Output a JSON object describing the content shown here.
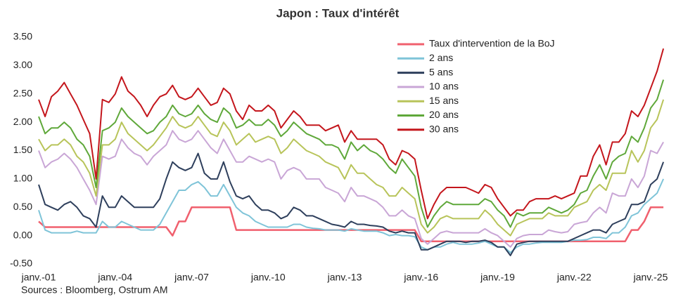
{
  "chart_data": {
    "type": "line",
    "title": "Japon : Taux d'intérêt",
    "source": "Sources : Bloomberg, Ostrum AM",
    "grid": false,
    "legend": "top-right",
    "ylim": [
      -0.5,
      3.5
    ],
    "yticks": [
      {
        "value": -0.5,
        "label": "-0.50"
      },
      {
        "value": 0,
        "label": "0.00"
      },
      {
        "value": 0.5,
        "label": "0.50"
      },
      {
        "value": 1,
        "label": "1.00"
      },
      {
        "value": 1.5,
        "label": "1.50"
      },
      {
        "value": 2,
        "label": "2.00"
      },
      {
        "value": 2.5,
        "label": "2.50"
      },
      {
        "value": 3,
        "label": "3.00"
      },
      {
        "value": 3.5,
        "label": "3.50"
      }
    ],
    "categories": [
      "janv.-01",
      null,
      null,
      null,
      null,
      null,
      null,
      null,
      null,
      null,
      null,
      null,
      "janv.-04",
      null,
      null,
      null,
      null,
      null,
      null,
      null,
      null,
      null,
      null,
      null,
      "janv.-07",
      null,
      null,
      null,
      null,
      null,
      null,
      null,
      null,
      null,
      null,
      null,
      "janv.-10",
      null,
      null,
      null,
      null,
      null,
      null,
      null,
      null,
      null,
      null,
      null,
      "janv.-13",
      null,
      null,
      null,
      null,
      null,
      null,
      null,
      null,
      null,
      null,
      null,
      "janv.-16",
      null,
      null,
      null,
      null,
      null,
      null,
      null,
      null,
      null,
      null,
      null,
      "janv.-19",
      null,
      null,
      null,
      null,
      null,
      null,
      null,
      null,
      null,
      null,
      null,
      "janv.-22",
      null,
      null,
      null,
      null,
      null,
      null,
      null,
      null,
      null,
      null,
      null,
      "janv.-25",
      null,
      null
    ],
    "series": [
      {
        "name": "Taux d'intervention de la BoJ",
        "color": "#f0606e",
        "values": [
          0.25,
          0.15,
          0.15,
          0.15,
          0.15,
          0.15,
          0.15,
          0.15,
          0.15,
          0.15,
          0.15,
          0.15,
          0.15,
          0.15,
          0.15,
          0.15,
          0.15,
          0.15,
          0.15,
          0.15,
          0.15,
          0,
          0.25,
          0.25,
          0.5,
          0.5,
          0.5,
          0.5,
          0.5,
          0.5,
          0.5,
          0.1,
          0.1,
          0.1,
          0.1,
          0.1,
          0.1,
          0.1,
          0.1,
          0.1,
          0.1,
          0.1,
          0.1,
          0.1,
          0.1,
          0.1,
          0.1,
          0.1,
          0.1,
          0.1,
          0.1,
          0.1,
          0.1,
          0.1,
          0.1,
          0.1,
          0.1,
          0.1,
          0.1,
          0.1,
          -0.1,
          -0.1,
          -0.1,
          -0.1,
          -0.1,
          -0.1,
          -0.1,
          -0.1,
          -0.1,
          -0.1,
          -0.1,
          -0.1,
          -0.1,
          -0.1,
          -0.1,
          -0.1,
          -0.1,
          -0.1,
          -0.1,
          -0.1,
          -0.1,
          -0.1,
          -0.1,
          -0.1,
          -0.1,
          -0.1,
          -0.1,
          -0.1,
          -0.1,
          -0.1,
          -0.1,
          -0.1,
          -0.1,
          0.1,
          0.1,
          0.25,
          0.5,
          0.5,
          0.5
        ]
      },
      {
        "name": "2 ans",
        "color": "#7fc4d8",
        "values": [
          0.45,
          0.1,
          0.05,
          0.05,
          0.05,
          0.05,
          0.08,
          0.05,
          0.05,
          0.05,
          0.25,
          0.15,
          0.15,
          0.25,
          0.2,
          0.15,
          0.1,
          0.1,
          0.1,
          0.2,
          0.4,
          0.6,
          0.8,
          0.8,
          0.9,
          0.95,
          0.85,
          0.7,
          0.7,
          0.9,
          0.7,
          0.5,
          0.4,
          0.35,
          0.25,
          0.2,
          0.15,
          0.15,
          0.15,
          0.15,
          0.2,
          0.2,
          0.15,
          0.13,
          0.12,
          0.1,
          0.1,
          0.1,
          0.08,
          0.12,
          0.1,
          0.08,
          0.08,
          0.08,
          0.05,
          0,
          0.02,
          0,
          0,
          -0.02,
          -0.2,
          -0.25,
          -0.2,
          -0.2,
          -0.15,
          -0.12,
          -0.15,
          -0.15,
          -0.15,
          -0.13,
          -0.1,
          -0.15,
          -0.2,
          -0.2,
          -0.3,
          -0.2,
          -0.15,
          -0.15,
          -0.13,
          -0.12,
          -0.12,
          -0.12,
          -0.12,
          -0.1,
          -0.08,
          -0.08,
          -0.07,
          -0.03,
          -0.03,
          -0.05,
          0.05,
          0.05,
          0.15,
          0.35,
          0.4,
          0.55,
          0.65,
          0.75,
          1.0
        ]
      },
      {
        "name": "5 ans",
        "color": "#2e3f5c",
        "values": [
          0.9,
          0.55,
          0.5,
          0.45,
          0.55,
          0.6,
          0.5,
          0.35,
          0.3,
          0.15,
          0.7,
          0.5,
          0.5,
          0.7,
          0.6,
          0.5,
          0.5,
          0.5,
          0.5,
          0.65,
          1.0,
          1.3,
          1.2,
          1.15,
          1.2,
          1.45,
          1.1,
          1.0,
          1.0,
          1.3,
          0.95,
          0.7,
          0.65,
          0.7,
          0.55,
          0.45,
          0.45,
          0.4,
          0.3,
          0.35,
          0.5,
          0.45,
          0.35,
          0.35,
          0.3,
          0.25,
          0.2,
          0.18,
          0.15,
          0.25,
          0.2,
          0.2,
          0.18,
          0.17,
          0.15,
          0.08,
          0.05,
          0.08,
          0.05,
          0.05,
          -0.25,
          -0.25,
          -0.2,
          -0.15,
          -0.1,
          -0.1,
          -0.1,
          -0.12,
          -0.1,
          -0.1,
          -0.08,
          -0.12,
          -0.2,
          -0.2,
          -0.35,
          -0.15,
          -0.12,
          -0.1,
          -0.1,
          -0.1,
          -0.1,
          -0.1,
          -0.1,
          -0.1,
          -0.05,
          0,
          0.05,
          0.1,
          0.1,
          0.05,
          0.2,
          0.25,
          0.3,
          0.55,
          0.55,
          0.6,
          0.9,
          1.0,
          1.3
        ]
      },
      {
        "name": "10 ans",
        "color": "#c9a6d6",
        "values": [
          1.5,
          1.2,
          1.3,
          1.35,
          1.45,
          1.35,
          1.2,
          1.0,
          0.8,
          0.55,
          1.4,
          1.35,
          1.4,
          1.7,
          1.55,
          1.45,
          1.4,
          1.25,
          1.4,
          1.5,
          1.6,
          1.85,
          1.7,
          1.65,
          1.7,
          1.85,
          1.7,
          1.55,
          1.45,
          1.7,
          1.5,
          1.3,
          1.3,
          1.4,
          1.35,
          1.3,
          1.35,
          1.3,
          1.0,
          1.15,
          1.2,
          1.15,
          1.0,
          1.0,
          1.0,
          0.85,
          0.8,
          0.75,
          0.6,
          0.85,
          0.7,
          0.7,
          0.65,
          0.6,
          0.5,
          0.35,
          0.35,
          0.45,
          0.35,
          0.3,
          -0.05,
          -0.15,
          -0.05,
          0.05,
          0.08,
          0.05,
          0.05,
          0.05,
          0.05,
          0.05,
          0.12,
          0.05,
          0,
          -0.1,
          -0.2,
          -0.05,
          0,
          0.02,
          0.02,
          0.02,
          0.1,
          0.07,
          0.05,
          0.07,
          0.2,
          0.23,
          0.25,
          0.4,
          0.5,
          0.4,
          0.75,
          0.7,
          0.7,
          1.0,
          0.85,
          1.05,
          1.5,
          1.45,
          1.65
        ]
      },
      {
        "name": "15 ans",
        "color": "#b8c45a",
        "values": [
          1.7,
          1.5,
          1.6,
          1.6,
          1.7,
          1.6,
          1.4,
          1.3,
          1.1,
          0.7,
          1.6,
          1.6,
          1.7,
          2.0,
          1.8,
          1.7,
          1.6,
          1.5,
          1.6,
          1.75,
          1.9,
          2.1,
          1.95,
          1.9,
          1.95,
          2.1,
          1.95,
          1.8,
          1.75,
          2.0,
          1.85,
          1.6,
          1.7,
          1.8,
          1.65,
          1.7,
          1.75,
          1.7,
          1.45,
          1.55,
          1.7,
          1.6,
          1.5,
          1.45,
          1.4,
          1.3,
          1.25,
          1.2,
          1.0,
          1.25,
          1.1,
          1.1,
          1.0,
          0.9,
          0.85,
          0.7,
          0.7,
          0.85,
          0.75,
          0.65,
          0.2,
          0.05,
          0.15,
          0.3,
          0.35,
          0.3,
          0.3,
          0.3,
          0.3,
          0.3,
          0.45,
          0.35,
          0.2,
          0.1,
          0,
          0.2,
          0.25,
          0.3,
          0.3,
          0.3,
          0.4,
          0.35,
          0.35,
          0.35,
          0.5,
          0.55,
          0.6,
          0.8,
          0.9,
          0.8,
          1.1,
          1.1,
          1.1,
          1.5,
          1.3,
          1.5,
          1.9,
          2.05,
          2.4
        ]
      },
      {
        "name": "20 ans",
        "color": "#5fa83a",
        "values": [
          2.1,
          1.8,
          1.9,
          1.9,
          2.0,
          1.9,
          1.7,
          1.6,
          1.4,
          0.85,
          1.85,
          1.9,
          2.0,
          2.25,
          2.1,
          2.0,
          1.9,
          1.8,
          1.85,
          2.0,
          2.1,
          2.3,
          2.15,
          2.1,
          2.15,
          2.3,
          2.15,
          2.05,
          2.0,
          2.25,
          2.15,
          1.9,
          1.95,
          2.05,
          1.95,
          1.95,
          2.05,
          1.95,
          1.75,
          1.85,
          2.0,
          1.9,
          1.8,
          1.75,
          1.7,
          1.6,
          1.6,
          1.55,
          1.35,
          1.65,
          1.5,
          1.6,
          1.5,
          1.45,
          1.35,
          1.2,
          1.1,
          1.35,
          1.2,
          1.05,
          0.5,
          0.15,
          0.35,
          0.5,
          0.6,
          0.55,
          0.55,
          0.55,
          0.55,
          0.55,
          0.65,
          0.6,
          0.45,
          0.35,
          0.15,
          0.4,
          0.35,
          0.4,
          0.4,
          0.4,
          0.5,
          0.45,
          0.4,
          0.45,
          0.55,
          0.75,
          0.8,
          1.05,
          1.25,
          1.0,
          1.3,
          1.4,
          1.45,
          1.75,
          1.65,
          1.9,
          2.25,
          2.4,
          2.75
        ]
      },
      {
        "name": "30 ans",
        "color": "#c4161c",
        "values": [
          2.4,
          2.1,
          2.45,
          2.55,
          2.7,
          2.5,
          2.3,
          2.05,
          1.8,
          1.0,
          2.4,
          2.35,
          2.5,
          2.8,
          2.55,
          2.45,
          2.3,
          2.1,
          2.3,
          2.45,
          2.5,
          2.65,
          2.45,
          2.4,
          2.45,
          2.6,
          2.45,
          2.3,
          2.35,
          2.6,
          2.5,
          2.2,
          2.05,
          2.3,
          2.2,
          2.2,
          2.3,
          2.2,
          1.9,
          2.05,
          2.2,
          2.1,
          1.95,
          1.95,
          1.95,
          1.85,
          1.9,
          1.95,
          1.65,
          1.85,
          1.7,
          1.7,
          1.7,
          1.7,
          1.6,
          1.35,
          1.25,
          1.5,
          1.45,
          1.35,
          0.8,
          0.3,
          0.55,
          0.75,
          0.85,
          0.85,
          0.85,
          0.85,
          0.8,
          0.75,
          0.9,
          0.85,
          0.65,
          0.5,
          0.35,
          0.45,
          0.45,
          0.6,
          0.65,
          0.65,
          0.65,
          0.7,
          0.65,
          0.7,
          0.75,
          1.05,
          1.05,
          1.4,
          1.6,
          1.25,
          1.65,
          1.65,
          1.8,
          2.2,
          2.1,
          2.3,
          2.6,
          2.9,
          3.3
        ]
      }
    ]
  }
}
